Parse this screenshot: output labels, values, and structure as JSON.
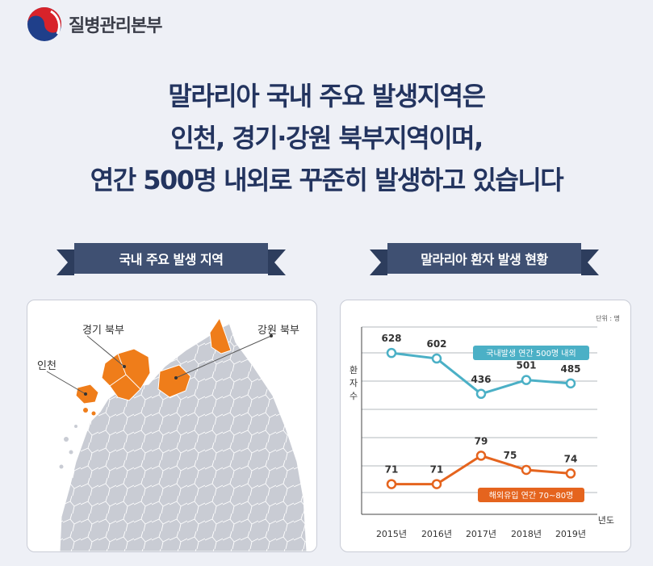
{
  "header": {
    "org_name": "질병관리본부"
  },
  "headline": {
    "line1": "말라리아 국내 주요 발생지역은",
    "line2": "인천, 경기·강원 북부지역이며,",
    "line3": "연간 500명 내외로 꾸준히 발생하고 있습니다"
  },
  "map_section": {
    "title": "국내 주요 발생 지역",
    "labels": {
      "gyeonggi": "경기 북부",
      "gangwon": "강원 북부",
      "incheon": "인천"
    },
    "colors": {
      "highlight": "#ef7d1a",
      "base": "#c9ccd4"
    }
  },
  "chart_section": {
    "title": "말라리아 환자 발생 현황"
  },
  "chart_data": {
    "type": "line",
    "title": "",
    "unit": "단위 : 명",
    "ylabel": "환자수",
    "xlabel": "년도",
    "x": [
      "2015년",
      "2016년",
      "2017년",
      "2018년",
      "2019년"
    ],
    "grid": true,
    "series": [
      {
        "name": "국내발생 연간 500명 내외",
        "values": [
          628,
          602,
          436,
          501,
          485
        ],
        "color": "#4bb0c6"
      },
      {
        "name": "해외유입 연간 70~80명",
        "values": [
          71,
          71,
          79,
          75,
          74
        ],
        "color": "#e5641e"
      }
    ]
  }
}
